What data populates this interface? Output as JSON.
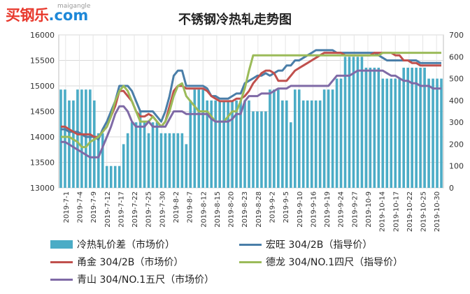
{
  "logo": {
    "main": "买钢乐",
    "com": ".com",
    "sub": "maigangle"
  },
  "chart_data": {
    "type": "bar+line",
    "title": "不锈钢冷热轧走势图",
    "y_left": {
      "min": 13000,
      "max": 16000,
      "ticks": [
        13000,
        13500,
        14000,
        14500,
        15000,
        15500,
        16000
      ]
    },
    "y_right": {
      "min": 0,
      "max": 700,
      "ticks": [
        0,
        100,
        200,
        300,
        400,
        500,
        600,
        700
      ]
    },
    "x_tick_labels": [
      "2019-7-1",
      "2019-7-4",
      "2019-7-9",
      "2019-7-12",
      "2019-7-17",
      "2019-7-22",
      "2019-7-25",
      "2019-7-30",
      "2019-8-2",
      "2019-8-7",
      "2019-8-12",
      "2019-8-15",
      "2019-8-20",
      "2019-8-23",
      "2019-8-28",
      "2019-9-2",
      "2019-9-5",
      "2019-9-10",
      "2019-9-16",
      "2019-9-19",
      "2019-9-24",
      "2019-9-27",
      "2019-10-9",
      "2019-10-14",
      "2019-10-17",
      "2019-10-22",
      "2019-10-25",
      "2019-10-30"
    ],
    "grid": true,
    "legend_position": "bottom",
    "series": [
      {
        "name": "冷热轧价差（市场价）",
        "kind": "bar",
        "axis": "right",
        "color": "#4bacc6",
        "values": [
          450,
          450,
          400,
          400,
          450,
          450,
          450,
          450,
          400,
          250,
          250,
          100,
          100,
          100,
          100,
          200,
          250,
          300,
          300,
          350,
          300,
          250,
          300,
          300,
          250,
          250,
          250,
          250,
          250,
          250,
          200,
          400,
          450,
          450,
          450,
          400,
          400,
          400,
          400,
          400,
          400,
          400,
          400,
          400,
          400,
          400,
          350,
          350,
          350,
          350,
          450,
          450,
          450,
          400,
          400,
          300,
          450,
          450,
          400,
          400,
          400,
          400,
          400,
          450,
          450,
          450,
          500,
          500,
          600,
          600,
          600,
          600,
          600,
          550,
          550,
          550,
          550,
          500,
          500,
          500,
          500,
          500,
          550,
          550,
          550,
          550,
          550,
          550,
          500,
          500,
          500,
          500
        ]
      },
      {
        "name": "宏旺 304/2B（指导价）",
        "kind": "line",
        "axis": "left",
        "color": "#4a7ea8",
        "values": [
          14150,
          14150,
          14100,
          14100,
          14100,
          14050,
          14000,
          14000,
          14000,
          13950,
          14150,
          14300,
          14500,
          14700,
          15000,
          15000,
          15000,
          14900,
          14700,
          14500,
          14500,
          14500,
          14500,
          14400,
          14300,
          14500,
          14800,
          15200,
          15300,
          15300,
          15000,
          15000,
          15000,
          15000,
          15000,
          14950,
          14800,
          14800,
          14750,
          14750,
          14750,
          14800,
          14850,
          14850,
          15050,
          15100,
          15150,
          15200,
          15200,
          15250,
          15200,
          15250,
          15300,
          15300,
          15400,
          15400,
          15500,
          15500,
          15550,
          15600,
          15650,
          15700,
          15700,
          15700,
          15700,
          15700,
          15650,
          15650,
          15650,
          15650,
          15650,
          15650,
          15650,
          15650,
          15650,
          15650,
          15600,
          15550,
          15500,
          15500,
          15500,
          15500,
          15500,
          15500,
          15500,
          15500,
          15450,
          15450,
          15450,
          15450,
          15450,
          15450
        ]
      },
      {
        "name": "甬金 304/2B（市场价）",
        "kind": "line",
        "axis": "left",
        "color": "#c0504d",
        "values": [
          14200,
          14200,
          14150,
          14100,
          14050,
          14050,
          14050,
          14050,
          14000,
          14000,
          14100,
          14200,
          14400,
          14600,
          14900,
          14900,
          14800,
          14700,
          14500,
          14400,
          14400,
          14450,
          14400,
          14300,
          14200,
          14300,
          14600,
          14900,
          15000,
          15000,
          14950,
          14950,
          14950,
          14950,
          14950,
          14900,
          14800,
          14750,
          14700,
          14700,
          14700,
          14700,
          14750,
          14750,
          14800,
          14900,
          15050,
          15150,
          15250,
          15300,
          15300,
          15250,
          15100,
          15100,
          15100,
          15200,
          15300,
          15350,
          15400,
          15450,
          15500,
          15550,
          15600,
          15650,
          15650,
          15650,
          15650,
          15650,
          15600,
          15600,
          15600,
          15600,
          15600,
          15600,
          15600,
          15650,
          15650,
          15650,
          15650,
          15650,
          15600,
          15600,
          15500,
          15500,
          15450,
          15450,
          15400,
          15400,
          15400,
          15400,
          15400,
          15400
        ]
      },
      {
        "name": "德龙 304/NO.1四尺（指导价）",
        "kind": "line",
        "axis": "left",
        "color": "#9bbb59",
        "values": [
          14000,
          14000,
          14000,
          13950,
          13900,
          13800,
          13800,
          13900,
          13950,
          14000,
          14100,
          14200,
          14400,
          14700,
          14900,
          15000,
          14900,
          14700,
          14500,
          14300,
          14300,
          14300,
          14400,
          14300,
          14200,
          14300,
          14500,
          14800,
          15000,
          15050,
          14800,
          14700,
          14600,
          14500,
          14500,
          14500,
          14400,
          14300,
          14300,
          14300,
          14400,
          14500,
          14500,
          14700,
          14950,
          15300,
          15600,
          15600,
          15600,
          15600,
          15600,
          15600,
          15600,
          15600,
          15600,
          15600,
          15600,
          15600,
          15600,
          15600,
          15600,
          15600,
          15600,
          15600,
          15600,
          15600,
          15600,
          15600,
          15600,
          15600,
          15600,
          15600,
          15600,
          15600,
          15600,
          15600,
          15600,
          15650,
          15650,
          15650,
          15650,
          15650,
          15650,
          15650,
          15650,
          15650,
          15650,
          15650,
          15650,
          15650,
          15650,
          15650
        ]
      },
      {
        "name": "青山 304/NO.1五尺（市场价）",
        "kind": "line",
        "axis": "left",
        "color": "#7f6aa6",
        "values": [
          13900,
          13900,
          13850,
          13800,
          13750,
          13700,
          13650,
          13600,
          13600,
          13600,
          13800,
          14000,
          14200,
          14450,
          14600,
          14600,
          14500,
          14300,
          14200,
          14200,
          14200,
          14300,
          14200,
          14200,
          14200,
          14200,
          14350,
          14500,
          14500,
          14500,
          14450,
          14450,
          14450,
          14450,
          14450,
          14450,
          14350,
          14300,
          14300,
          14300,
          14300,
          14350,
          14450,
          14450,
          14700,
          14800,
          14800,
          14800,
          14850,
          14850,
          14850,
          14900,
          14950,
          14950,
          14950,
          15000,
          15000,
          15000,
          15000,
          15000,
          15000,
          15000,
          15000,
          15000,
          15000,
          15100,
          15200,
          15200,
          15200,
          15200,
          15250,
          15300,
          15300,
          15300,
          15300,
          15300,
          15300,
          15300,
          15250,
          15200,
          15200,
          15150,
          15100,
          15100,
          15050,
          15050,
          15000,
          15000,
          15000,
          14950,
          14950,
          14950
        ]
      }
    ]
  }
}
